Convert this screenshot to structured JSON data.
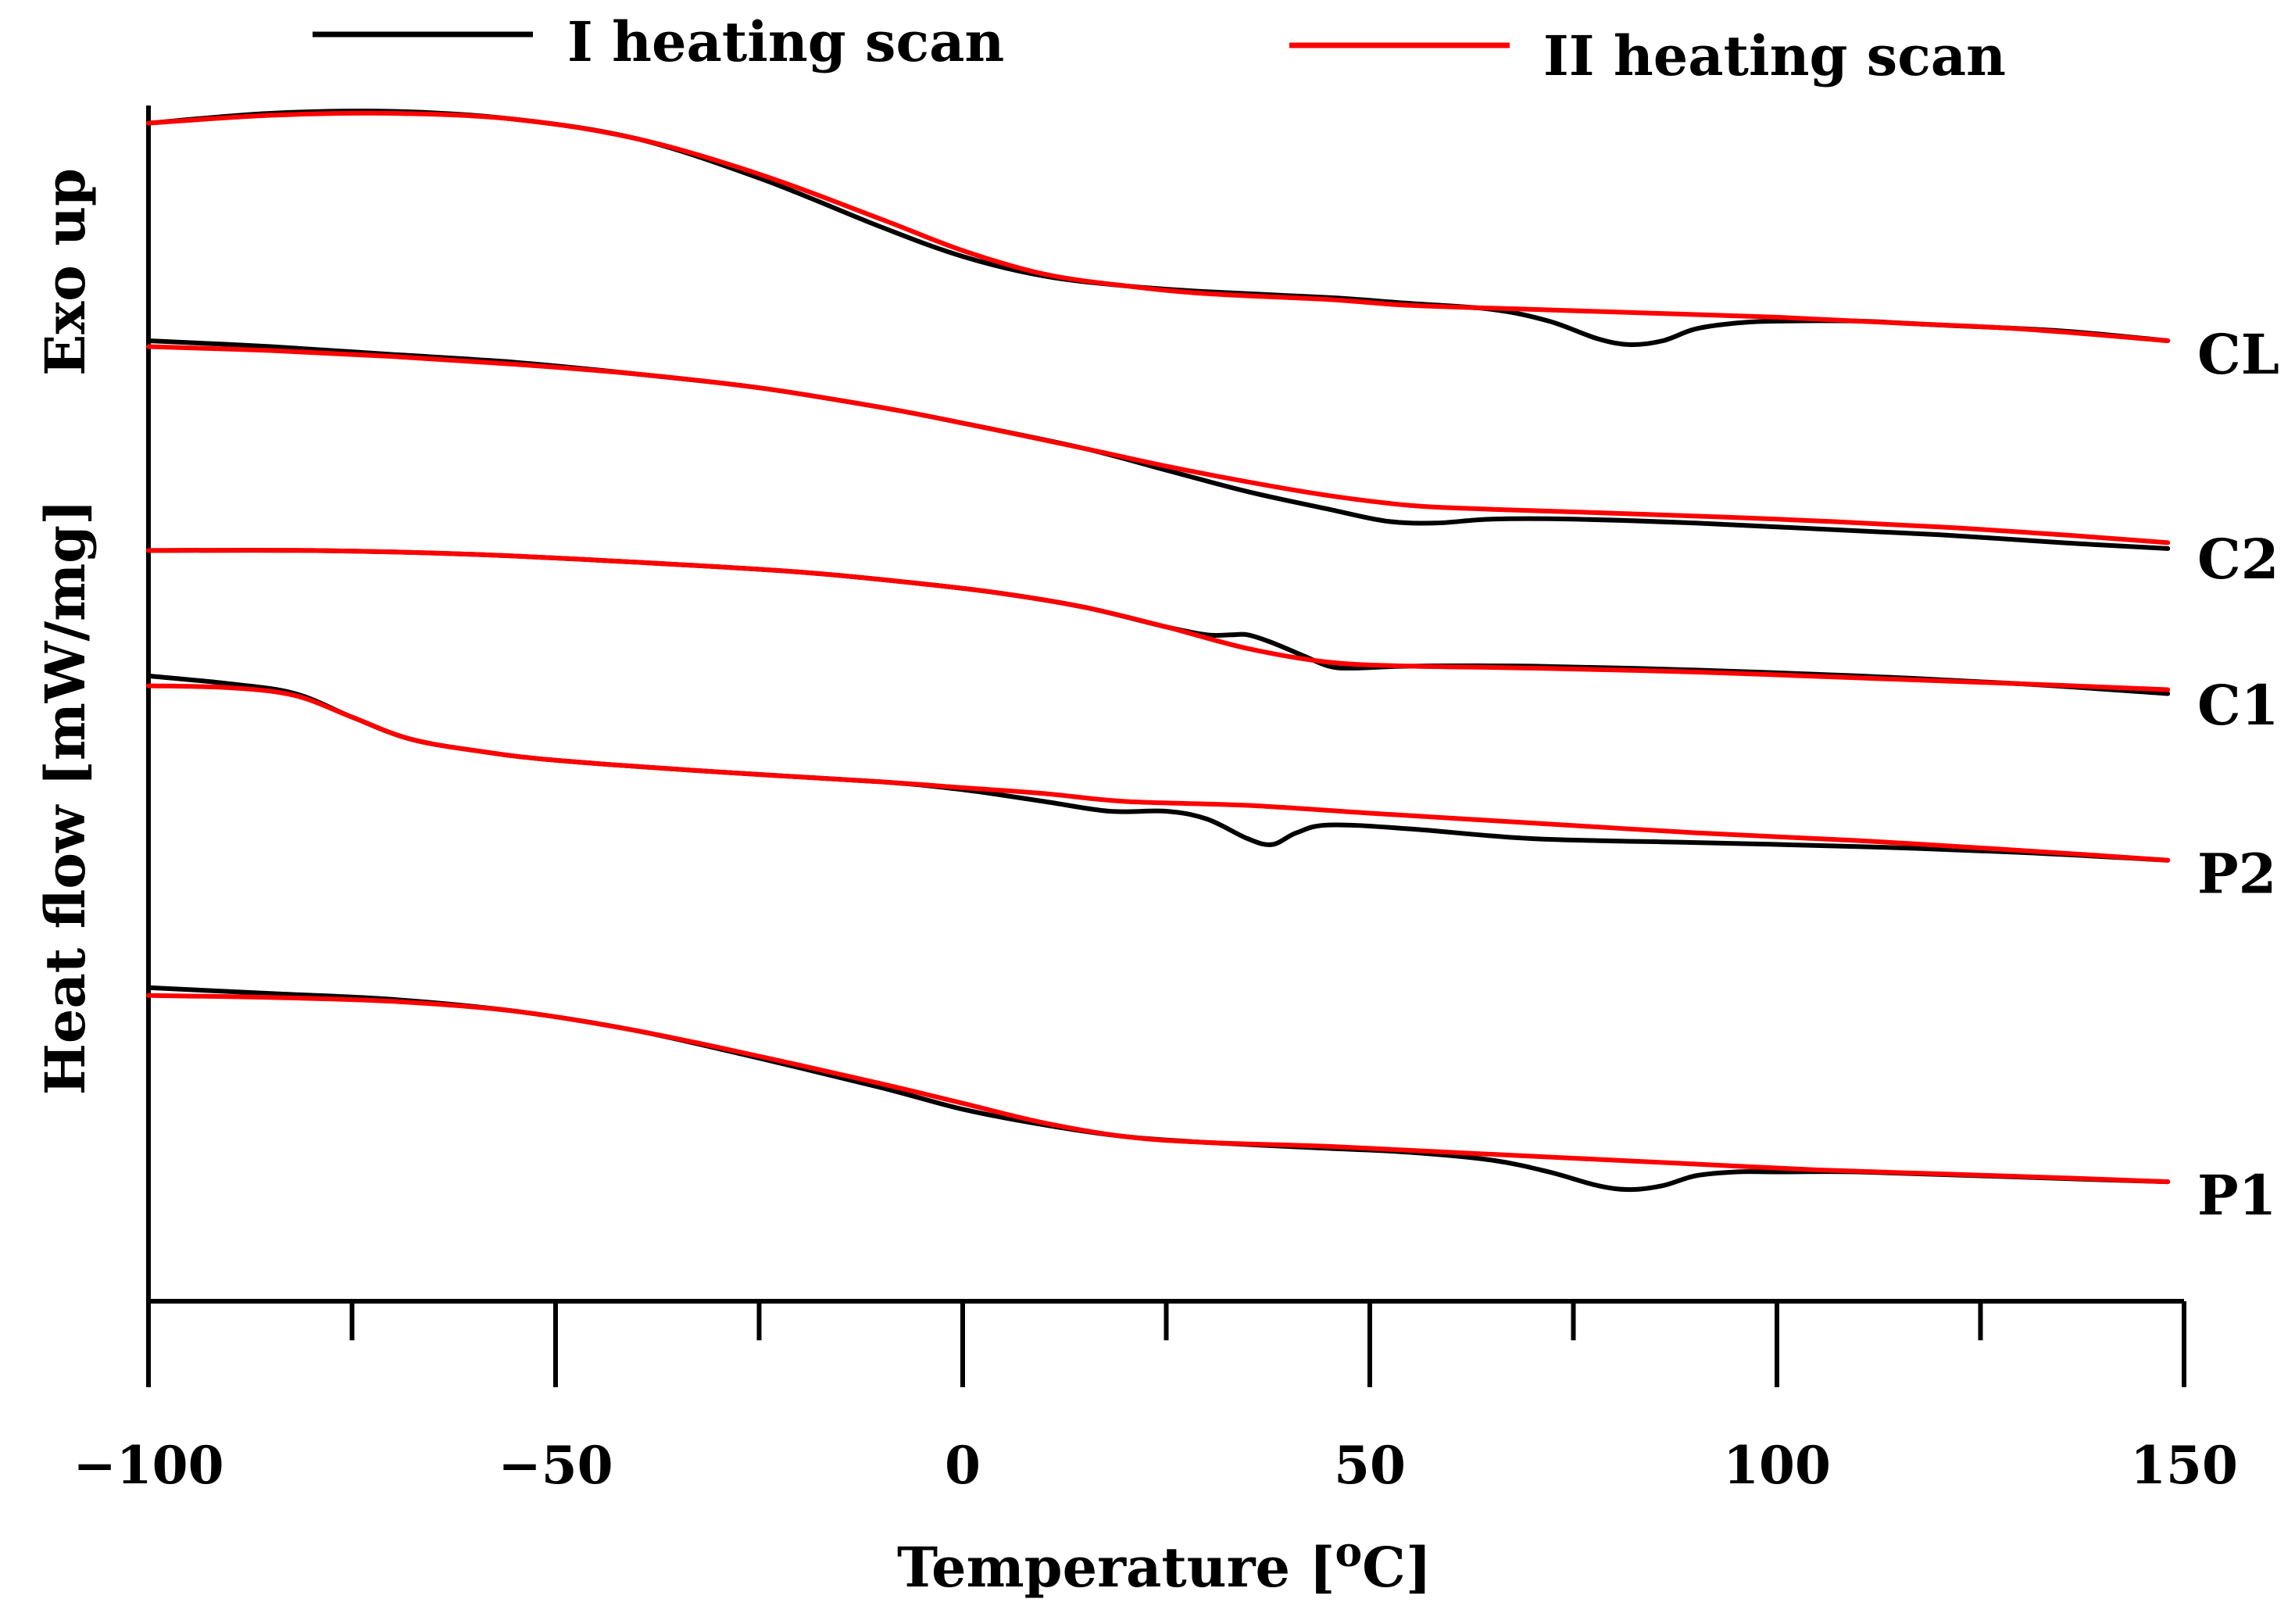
{
  "chart_data": {
    "type": "line",
    "title": "",
    "xlabel": "Temperature [",
    "xlabel_sup": "o",
    "xlabel_unit": "C]",
    "ylabel_exo": "Exo up",
    "ylabel": "Heat flow  [mW/mg]",
    "xlim": [
      -100,
      150
    ],
    "ylim": [
      0,
      6
    ],
    "y_ticks_shown": false,
    "x_major_ticks": [
      -100,
      -50,
      0,
      50,
      100,
      150
    ],
    "x_tick_labels": [
      "−100",
      "−50",
      "0",
      "50",
      "100",
      "150"
    ],
    "x_minor_ticks": [
      -75,
      -25,
      25,
      75,
      125
    ],
    "legend": {
      "placement": "top",
      "entries": [
        {
          "label": "I heating scan",
          "color": "#000000"
        },
        {
          "label": "II heating scan",
          "color": "#ff0000"
        }
      ]
    },
    "samples": [
      {
        "name": "CL",
        "label": "CL",
        "series": [
          {
            "scan": "I heating scan",
            "color": "#000000",
            "x": [
              -100,
              -85,
              -70,
              -55,
              -40,
              -25,
              -10,
              0,
              10,
              20,
              30,
              45,
              55,
              65,
              72,
              78,
              82,
              86,
              90,
              95,
              100,
              110,
              120,
              135,
              148
            ],
            "y": [
              5.91,
              5.96,
              5.97,
              5.93,
              5.83,
              5.63,
              5.38,
              5.23,
              5.13,
              5.08,
              5.05,
              5.02,
              4.99,
              4.96,
              4.9,
              4.81,
              4.78,
              4.8,
              4.86,
              4.89,
              4.9,
              4.9,
              4.88,
              4.85,
              4.8
            ]
          },
          {
            "scan": "II heating scan",
            "color": "#ff0000",
            "x": [
              -100,
              -85,
              -70,
              -55,
              -40,
              -25,
              -10,
              0,
              10,
              20,
              30,
              45,
              55,
              70,
              85,
              100,
              115,
              130,
              148
            ],
            "y": [
              5.91,
              5.95,
              5.96,
              5.93,
              5.83,
              5.65,
              5.42,
              5.26,
              5.14,
              5.08,
              5.04,
              5.01,
              4.98,
              4.96,
              4.94,
              4.92,
              4.89,
              4.86,
              4.8
            ]
          }
        ]
      },
      {
        "name": "C2",
        "label": "C2",
        "series": [
          {
            "scan": "I heating scan",
            "color": "#000000",
            "x": [
              -100,
              -85,
              -70,
              -55,
              -40,
              -25,
              -10,
              0,
              15,
              25,
              35,
              45,
              52,
              58,
              65,
              75,
              90,
              105,
              120,
              135,
              148
            ],
            "y": [
              4.8,
              4.77,
              4.73,
              4.69,
              4.63,
              4.56,
              4.46,
              4.38,
              4.25,
              4.14,
              4.03,
              3.94,
              3.88,
              3.87,
              3.89,
              3.89,
              3.87,
              3.84,
              3.81,
              3.77,
              3.74
            ]
          },
          {
            "scan": "II heating scan",
            "color": "#ff0000",
            "x": [
              -100,
              -85,
              -70,
              -55,
              -40,
              -25,
              -10,
              0,
              15,
              25,
              35,
              45,
              55,
              65,
              80,
              100,
              120,
              135,
              148
            ],
            "y": [
              4.77,
              4.75,
              4.72,
              4.68,
              4.63,
              4.56,
              4.46,
              4.38,
              4.25,
              4.16,
              4.08,
              4.01,
              3.96,
              3.94,
              3.92,
              3.89,
              3.85,
              3.81,
              3.77
            ]
          }
        ]
      },
      {
        "name": "C1",
        "label": "C1",
        "series": [
          {
            "scan": "I heating scan",
            "color": "#000000",
            "x": [
              -100,
              -80,
              -60,
              -40,
              -20,
              -5,
              5,
              15,
              25,
              30,
              33,
              35,
              38,
              42,
              45,
              48,
              55,
              70,
              90,
              110,
              130,
              148
            ],
            "y": [
              3.73,
              3.73,
              3.71,
              3.67,
              3.62,
              3.56,
              3.51,
              3.44,
              3.34,
              3.3,
              3.3,
              3.3,
              3.26,
              3.19,
              3.14,
              3.13,
              3.14,
              3.14,
              3.12,
              3.09,
              3.05,
              3.0
            ]
          },
          {
            "scan": "II heating scan",
            "color": "#ff0000",
            "x": [
              -100,
              -80,
              -60,
              -40,
              -20,
              -5,
              5,
              15,
              25,
              35,
              45,
              55,
              70,
              90,
              110,
              130,
              148
            ],
            "y": [
              3.73,
              3.73,
              3.71,
              3.67,
              3.62,
              3.56,
              3.51,
              3.44,
              3.34,
              3.23,
              3.16,
              3.14,
              3.13,
              3.11,
              3.08,
              3.05,
              3.02
            ]
          }
        ]
      },
      {
        "name": "P2",
        "label": "P2",
        "series": [
          {
            "scan": "I heating scan",
            "color": "#000000",
            "x": [
              -100,
              -90,
              -82,
              -75,
              -68,
              -60,
              -50,
              -30,
              -10,
              0,
              10,
              18,
              25,
              30,
              35,
              38,
              41,
              45,
              55,
              70,
              90,
              110,
              130,
              148
            ],
            "y": [
              3.09,
              3.05,
              3.0,
              2.88,
              2.77,
              2.71,
              2.66,
              2.6,
              2.55,
              2.51,
              2.45,
              2.4,
              2.4,
              2.36,
              2.26,
              2.23,
              2.29,
              2.33,
              2.31,
              2.26,
              2.24,
              2.22,
              2.19,
              2.15
            ]
          },
          {
            "scan": "II heating scan",
            "color": "#ff0000",
            "x": [
              -100,
              -90,
              -82,
              -75,
              -68,
              -60,
              -50,
              -30,
              -10,
              0,
              10,
              20,
              35,
              50,
              70,
              90,
              110,
              130,
              148
            ],
            "y": [
              3.04,
              3.03,
              2.99,
              2.88,
              2.77,
              2.71,
              2.66,
              2.6,
              2.55,
              2.52,
              2.49,
              2.45,
              2.43,
              2.39,
              2.34,
              2.29,
              2.25,
              2.2,
              2.15
            ]
          }
        ]
      },
      {
        "name": "P1",
        "label": "P1",
        "series": [
          {
            "scan": "I heating scan",
            "color": "#000000",
            "x": [
              -100,
              -85,
              -70,
              -55,
              -40,
              -25,
              -10,
              0,
              10,
              20,
              30,
              45,
              55,
              65,
              72,
              78,
              82,
              86,
              90,
              95,
              100,
              110,
              125,
              140,
              148
            ],
            "y": [
              1.5,
              1.47,
              1.44,
              1.38,
              1.28,
              1.14,
              0.99,
              0.88,
              0.8,
              0.74,
              0.71,
              0.68,
              0.66,
              0.62,
              0.56,
              0.49,
              0.47,
              0.49,
              0.54,
              0.56,
              0.56,
              0.56,
              0.54,
              0.52,
              0.51
            ]
          },
          {
            "scan": "II heating scan",
            "color": "#ff0000",
            "x": [
              -100,
              -85,
              -70,
              -55,
              -40,
              -25,
              -10,
              0,
              10,
              20,
              30,
              45,
              60,
              75,
              90,
              105,
              120,
              135,
              148
            ],
            "y": [
              1.46,
              1.45,
              1.43,
              1.38,
              1.28,
              1.15,
              1.01,
              0.91,
              0.81,
              0.74,
              0.71,
              0.69,
              0.66,
              0.63,
              0.6,
              0.57,
              0.55,
              0.53,
              0.51
            ]
          }
        ]
      }
    ]
  }
}
